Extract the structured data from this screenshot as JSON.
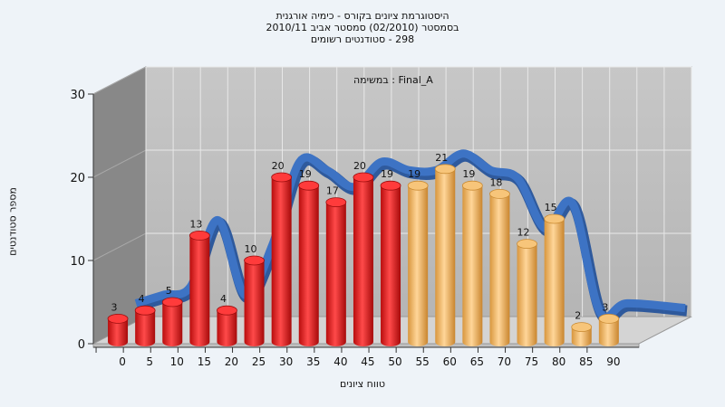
{
  "chart_data": {
    "type": "bar",
    "title_lines": [
      "היסטוגרמת ציונים בקורס - כימיה אורגנית",
      "בסמסטר  (02/2010)  סמסטר אביב 2010/11",
      "298 - סטודנטים רשומים"
    ],
    "legend": "Final_A : במשימה",
    "ylabel": "מספר סטודנטים",
    "xlabel": "טווח ציונים",
    "ylim": [
      0,
      30
    ],
    "yticks": [
      0,
      10,
      20,
      30
    ],
    "xticks": [
      "0",
      "5",
      "10",
      "15",
      "20",
      "25",
      "30",
      "35",
      "40",
      "45",
      "50",
      "55",
      "60",
      "65",
      "70",
      "75",
      "80",
      "85",
      "90"
    ],
    "grid": true,
    "bars": [
      {
        "x": 5,
        "value": 3,
        "color": "red"
      },
      {
        "x": 10,
        "value": 4,
        "color": "red"
      },
      {
        "x": 15,
        "value": 5,
        "color": "red"
      },
      {
        "x": 20,
        "value": 13,
        "color": "red"
      },
      {
        "x": 25,
        "value": 4,
        "color": "red"
      },
      {
        "x": 30,
        "value": 10,
        "color": "red"
      },
      {
        "x": 35,
        "value": 20,
        "color": "red"
      },
      {
        "x": 40,
        "value": 19,
        "color": "red"
      },
      {
        "x": 45,
        "value": 17,
        "color": "red"
      },
      {
        "x": 50,
        "value": 20,
        "color": "red"
      },
      {
        "x": 55,
        "value": 19,
        "color": "red"
      },
      {
        "x": 60,
        "value": 19,
        "color": "orange"
      },
      {
        "x": 65,
        "value": 21,
        "color": "orange"
      },
      {
        "x": 70,
        "value": 19,
        "color": "orange"
      },
      {
        "x": 75,
        "value": 18,
        "color": "orange"
      },
      {
        "x": 80,
        "value": 12,
        "color": "orange"
      },
      {
        "x": 85,
        "value": 15,
        "color": "orange"
      },
      {
        "x": 90,
        "value": 2,
        "color": "orange"
      },
      {
        "x": 95,
        "value": 3,
        "color": "orange"
      }
    ],
    "colors": {
      "red": "#e31b1b",
      "orange": "#f0b860",
      "curve": "#3d73c4",
      "wall": "#bdbdbd",
      "side_wall": "#888888"
    }
  }
}
